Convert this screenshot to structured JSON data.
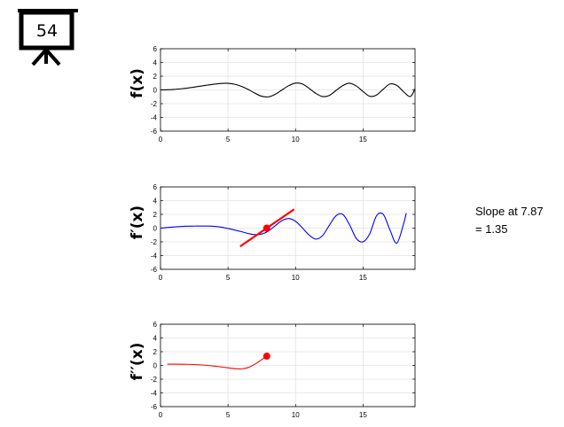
{
  "slide_icon": {
    "number": "54",
    "icon": "projector-screen-icon"
  },
  "slope_annotation": {
    "line1": "Slope at 7.87",
    "line2": "= 1.35"
  },
  "chart_data": [
    {
      "type": "line",
      "ylabel": "f(x)",
      "xlim": [
        0,
        18.85
      ],
      "ylim": [
        -6,
        6
      ],
      "xticks": [
        0,
        5,
        10,
        15
      ],
      "yticks": [
        -6,
        -4,
        -2,
        0,
        2,
        4,
        6
      ],
      "grid": true,
      "series": [
        {
          "color": "#000000",
          "x": [
            0,
            0.5,
            1,
            1.5,
            2,
            2.5,
            3,
            3.5,
            4,
            4.5,
            5,
            5.5,
            6,
            6.5,
            7,
            7.5,
            8,
            8.5,
            9,
            9.5,
            10,
            10.5,
            11,
            11.5,
            12,
            12.5,
            13,
            13.5,
            14,
            14.5,
            15,
            15.5,
            16,
            16.5,
            17,
            17.5,
            18,
            18.5,
            18.85
          ],
          "y": [
            0.0,
            0.02,
            0.07,
            0.16,
            0.27,
            0.41,
            0.56,
            0.71,
            0.85,
            0.95,
            0.96,
            0.82,
            0.52,
            0.06,
            -0.48,
            -0.93,
            -1.0,
            -0.64,
            0.0,
            0.62,
            0.99,
            0.87,
            0.24,
            -0.5,
            -0.96,
            -0.8,
            -0.08,
            0.63,
            0.97,
            0.57,
            -0.23,
            -0.93,
            -0.74,
            0.11,
            0.87,
            0.66,
            -0.26,
            -0.97,
            0.15
          ]
        }
      ]
    },
    {
      "type": "line",
      "ylabel": "f′(x)",
      "xlim": [
        0,
        18.85
      ],
      "ylim": [
        -6,
        6
      ],
      "xticks": [
        0,
        5,
        10,
        15
      ],
      "yticks": [
        -6,
        -4,
        -2,
        0,
        2,
        4,
        6
      ],
      "grid": true,
      "series": [
        {
          "color": "#0000ff",
          "x": [
            0,
            0.5,
            1,
            1.5,
            2,
            2.5,
            3,
            3.5,
            4,
            4.5,
            5,
            5.5,
            6,
            6.5,
            7,
            7.5,
            8,
            8.5,
            9,
            9.5,
            10,
            10.5,
            11,
            11.5,
            12,
            12.5,
            13,
            13.5,
            14,
            14.5,
            15,
            15.5,
            16,
            16.5,
            17,
            17.5,
            18,
            18.2
          ],
          "y": [
            0.0,
            0.09,
            0.17,
            0.24,
            0.28,
            0.29,
            0.3,
            0.3,
            0.25,
            0.14,
            -0.06,
            -0.28,
            -0.52,
            -0.79,
            -0.95,
            -0.86,
            -0.42,
            0.35,
            1.1,
            1.4,
            1.0,
            0.05,
            -1.0,
            -1.6,
            -1.1,
            0.4,
            1.8,
            2.0,
            0.5,
            -1.5,
            -2.0,
            -0.8,
            1.8,
            2.0,
            -0.3,
            -2.2,
            0.6,
            2.2
          ]
        }
      ],
      "tangent": {
        "x0": 7.87,
        "y0": 0.0,
        "slope": 1.35,
        "x_from": 5.9,
        "x_to": 9.9,
        "color": "#ff0000"
      },
      "marker": {
        "x": 7.87,
        "y": 0.0,
        "color": "#ff0000"
      }
    },
    {
      "type": "line",
      "ylabel": "f′′(x)",
      "xlim": [
        0,
        18.85
      ],
      "ylim": [
        -6,
        6
      ],
      "xticks": [
        0,
        5,
        10,
        15
      ],
      "yticks": [
        -6,
        -4,
        -2,
        0,
        2,
        4,
        6
      ],
      "grid": true,
      "series": [
        {
          "color": "#ff0000",
          "x": [
            0.5,
            1,
            1.5,
            2,
            2.5,
            3,
            3.5,
            4,
            4.5,
            5,
            5.5,
            6,
            6.5,
            7,
            7.5,
            7.87
          ],
          "y": [
            0.18,
            0.18,
            0.17,
            0.16,
            0.13,
            0.08,
            0.0,
            -0.1,
            -0.22,
            -0.35,
            -0.47,
            -0.5,
            -0.3,
            0.2,
            0.85,
            1.35
          ]
        }
      ],
      "marker": {
        "x": 7.87,
        "y": 1.35,
        "color": "#ff0000"
      }
    }
  ]
}
